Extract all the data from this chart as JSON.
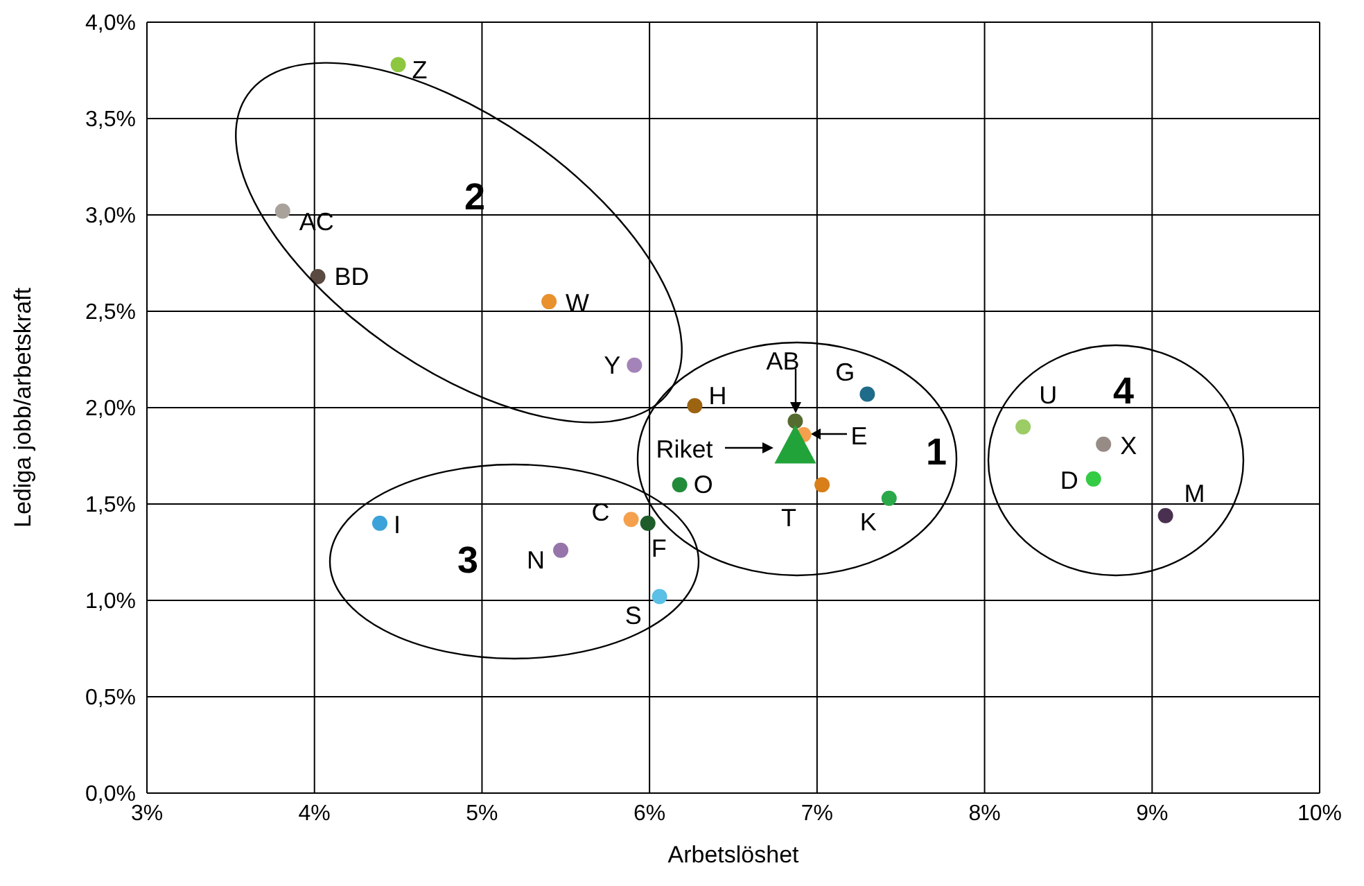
{
  "chart_data": {
    "type": "scatter",
    "xlabel": "Arbetslöshet",
    "ylabel": "Lediga jobb/arbetskraft",
    "xlim": [
      3,
      10
    ],
    "ylim": [
      0,
      4
    ],
    "xticks": [
      {
        "value": 3,
        "label": "3%"
      },
      {
        "value": 4,
        "label": "4%"
      },
      {
        "value": 5,
        "label": "5%"
      },
      {
        "value": 6,
        "label": "6%"
      },
      {
        "value": 7,
        "label": "7%"
      },
      {
        "value": 8,
        "label": "8%"
      },
      {
        "value": 9,
        "label": "9%"
      },
      {
        "value": 10,
        "label": "10%"
      }
    ],
    "yticks": [
      {
        "value": 0,
        "label": "0,0%"
      },
      {
        "value": 0.5,
        "label": "0,5%"
      },
      {
        "value": 1,
        "label": "1,0%"
      },
      {
        "value": 1.5,
        "label": "1,5%"
      },
      {
        "value": 2,
        "label": "2,0%"
      },
      {
        "value": 2.5,
        "label": "2,5%"
      },
      {
        "value": 3,
        "label": "3,0%"
      },
      {
        "value": 3.5,
        "label": "3,5%"
      },
      {
        "value": 4,
        "label": "4,0%"
      }
    ],
    "grid": true,
    "marker": "circle",
    "annotations": [
      "1",
      "2",
      "3",
      "4"
    ],
    "series": [
      {
        "name": "Z",
        "color": "#8dc63f",
        "x": [
          4.5
        ],
        "values": [
          3.78
        ]
      },
      {
        "name": "AC",
        "color": "#a9a29b",
        "x": [
          3.81
        ],
        "values": [
          3.02
        ]
      },
      {
        "name": "BD",
        "color": "#5a4a42",
        "x": [
          4.02
        ],
        "values": [
          2.68
        ]
      },
      {
        "name": "W",
        "color": "#e8912d",
        "x": [
          5.4
        ],
        "values": [
          2.55
        ]
      },
      {
        "name": "Y",
        "color": "#a484b8",
        "x": [
          5.91
        ],
        "values": [
          2.22
        ]
      },
      {
        "name": "H",
        "color": "#9c6310",
        "x": [
          6.27
        ],
        "values": [
          2.01
        ]
      },
      {
        "name": "AB",
        "color": "#556b2f",
        "x": [
          6.87
        ],
        "values": [
          1.93
        ]
      },
      {
        "name": "G",
        "color": "#1f6b8a",
        "x": [
          7.3
        ],
        "values": [
          2.07
        ]
      },
      {
        "name": "E",
        "color": "#f5a04d",
        "x": [
          6.92
        ],
        "values": [
          1.86
        ]
      },
      {
        "name": "Riket",
        "color": "#22a33a",
        "x": [
          6.87
        ],
        "values": [
          1.79
        ],
        "marker": "triangle"
      },
      {
        "name": "O",
        "color": "#228b3a",
        "x": [
          6.18
        ],
        "values": [
          1.6
        ]
      },
      {
        "name": "T",
        "color": "#d87f1a",
        "x": [
          7.03
        ],
        "values": [
          1.6
        ]
      },
      {
        "name": "K",
        "color": "#2aa84a",
        "x": [
          7.43
        ],
        "values": [
          1.53
        ]
      },
      {
        "name": "U",
        "color": "#9ccc65",
        "x": [
          8.23
        ],
        "values": [
          1.9
        ]
      },
      {
        "name": "X",
        "color": "#968c85",
        "x": [
          8.71
        ],
        "values": [
          1.81
        ]
      },
      {
        "name": "D",
        "color": "#33cc44",
        "x": [
          8.65
        ],
        "values": [
          1.63
        ]
      },
      {
        "name": "M",
        "color": "#4a3050",
        "x": [
          9.08
        ],
        "values": [
          1.44
        ]
      },
      {
        "name": "I",
        "color": "#3ba3d9",
        "x": [
          4.39
        ],
        "values": [
          1.4
        ]
      },
      {
        "name": "C",
        "color": "#f5a04d",
        "x": [
          5.89
        ],
        "values": [
          1.42
        ]
      },
      {
        "name": "F",
        "color": "#1e5c2a",
        "x": [
          5.99
        ],
        "values": [
          1.4
        ]
      },
      {
        "name": "N",
        "color": "#9775aa",
        "x": [
          5.47
        ],
        "values": [
          1.26
        ]
      },
      {
        "name": "S",
        "color": "#5bbfe6",
        "x": [
          6.06
        ],
        "values": [
          1.02
        ]
      }
    ]
  }
}
